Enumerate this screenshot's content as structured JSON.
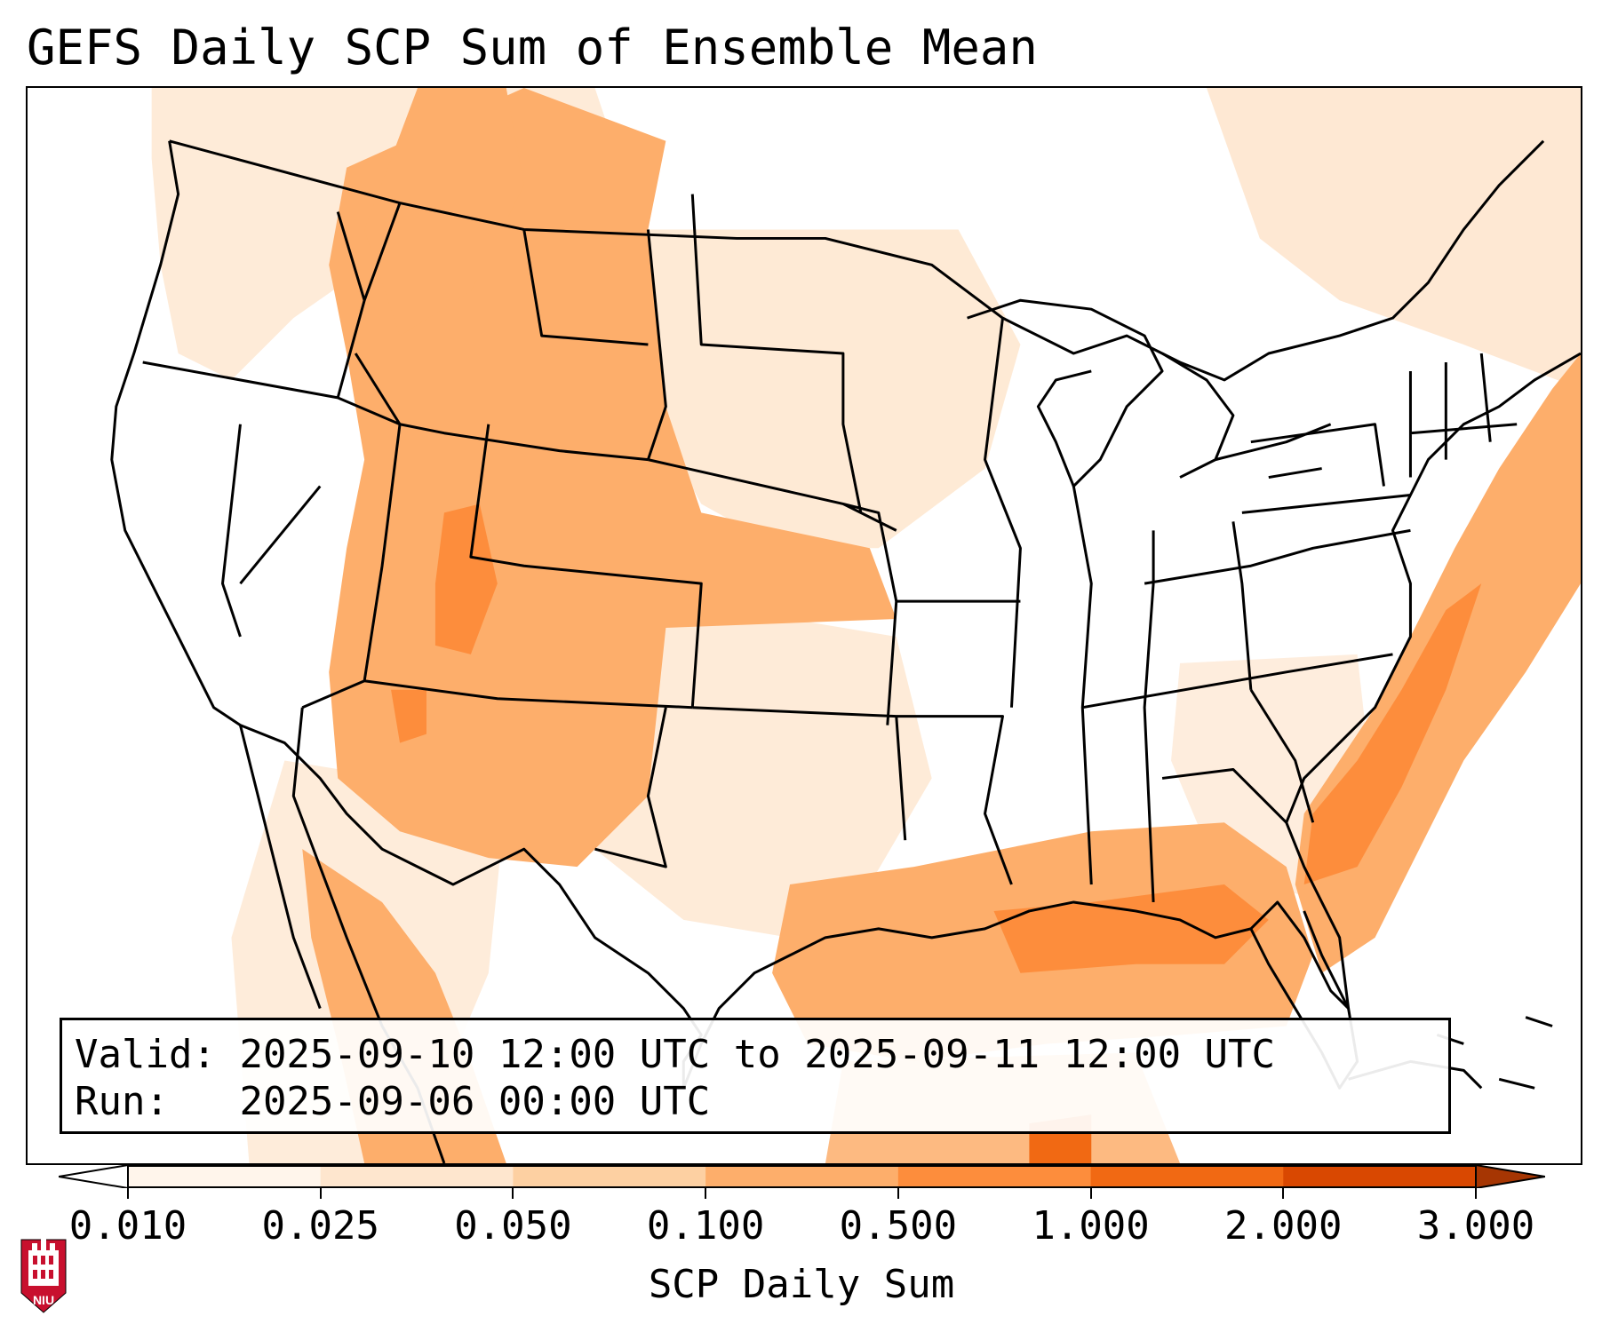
{
  "title": "GEFS Daily SCP Sum of Ensemble Mean",
  "info": {
    "valid_label": "Valid:",
    "valid_value": "2025-09-10 12:00 UTC to 2025-09-11 12:00 UTC",
    "run_label": "Run:",
    "run_value": "2025-09-06 00:00 UTC"
  },
  "colorbar": {
    "label": "SCP Daily Sum",
    "ticks": [
      "0.010",
      "0.025",
      "0.050",
      "0.100",
      "0.500",
      "1.000",
      "2.000",
      "3.000"
    ],
    "colors": [
      "#fff5eb",
      "#fee6ce",
      "#fdd0a2",
      "#fdae6b",
      "#fd8d3c",
      "#f16913",
      "#d94801",
      "#a63603"
    ],
    "under_color": "#ffffff",
    "over_color": "#a63603",
    "extend": "both"
  },
  "logo": {
    "text": "NIU",
    "color": "#c8102e"
  },
  "colors": {
    "accent": "#fd8d3c",
    "border": "#000000"
  }
}
